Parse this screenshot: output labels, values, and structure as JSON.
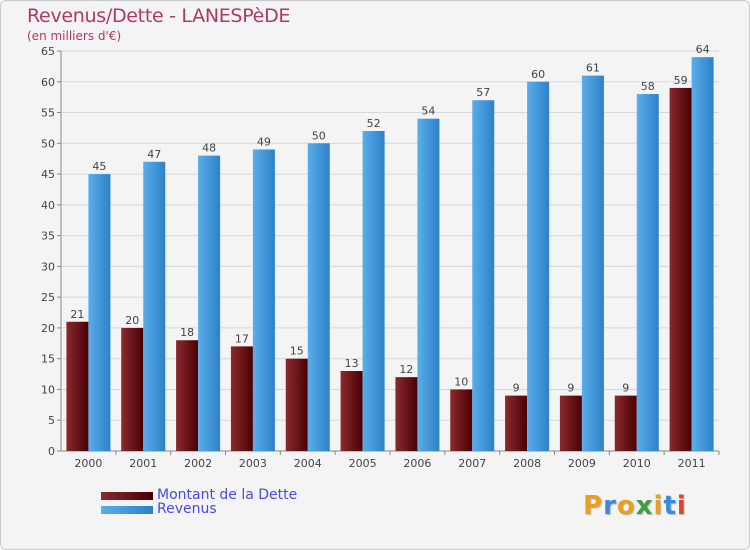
{
  "header": {
    "title": "Revenus/Dette - LANESPèDE",
    "subtitle": "(en milliers d'€)"
  },
  "logo": {
    "letters": [
      "P",
      "r",
      "o",
      "x",
      "i",
      "t",
      "i"
    ],
    "colors": [
      "#e8a020",
      "#3a8ad8",
      "#e8a020",
      "#3aa040",
      "#e8a020",
      "#3a8ad8",
      "#e04030"
    ]
  },
  "chart_data": {
    "type": "bar",
    "title": "Revenus/Dette - LANESPèDE",
    "subtitle": "(en milliers d'€)",
    "categories": [
      "2000",
      "2001",
      "2002",
      "2003",
      "2004",
      "2005",
      "2006",
      "2007",
      "2008",
      "2009",
      "2010",
      "2011"
    ],
    "series": [
      {
        "name": "Montant de la Dette",
        "color": "#6e1014",
        "values": [
          21,
          20,
          18,
          17,
          15,
          13,
          12,
          10,
          9,
          9,
          9,
          59
        ]
      },
      {
        "name": "Revenus",
        "color": "#4a9ee0",
        "values": [
          45,
          47,
          48,
          49,
          50,
          52,
          54,
          57,
          60,
          61,
          58,
          64
        ]
      }
    ],
    "yticks": [
      "0",
      "5",
      "10",
      "15",
      "20",
      "25",
      "30",
      "35",
      "40",
      "45",
      "50",
      "55",
      "60",
      "65"
    ],
    "ylim": [
      0,
      65
    ],
    "grid": true,
    "legend": "bottom-left"
  }
}
